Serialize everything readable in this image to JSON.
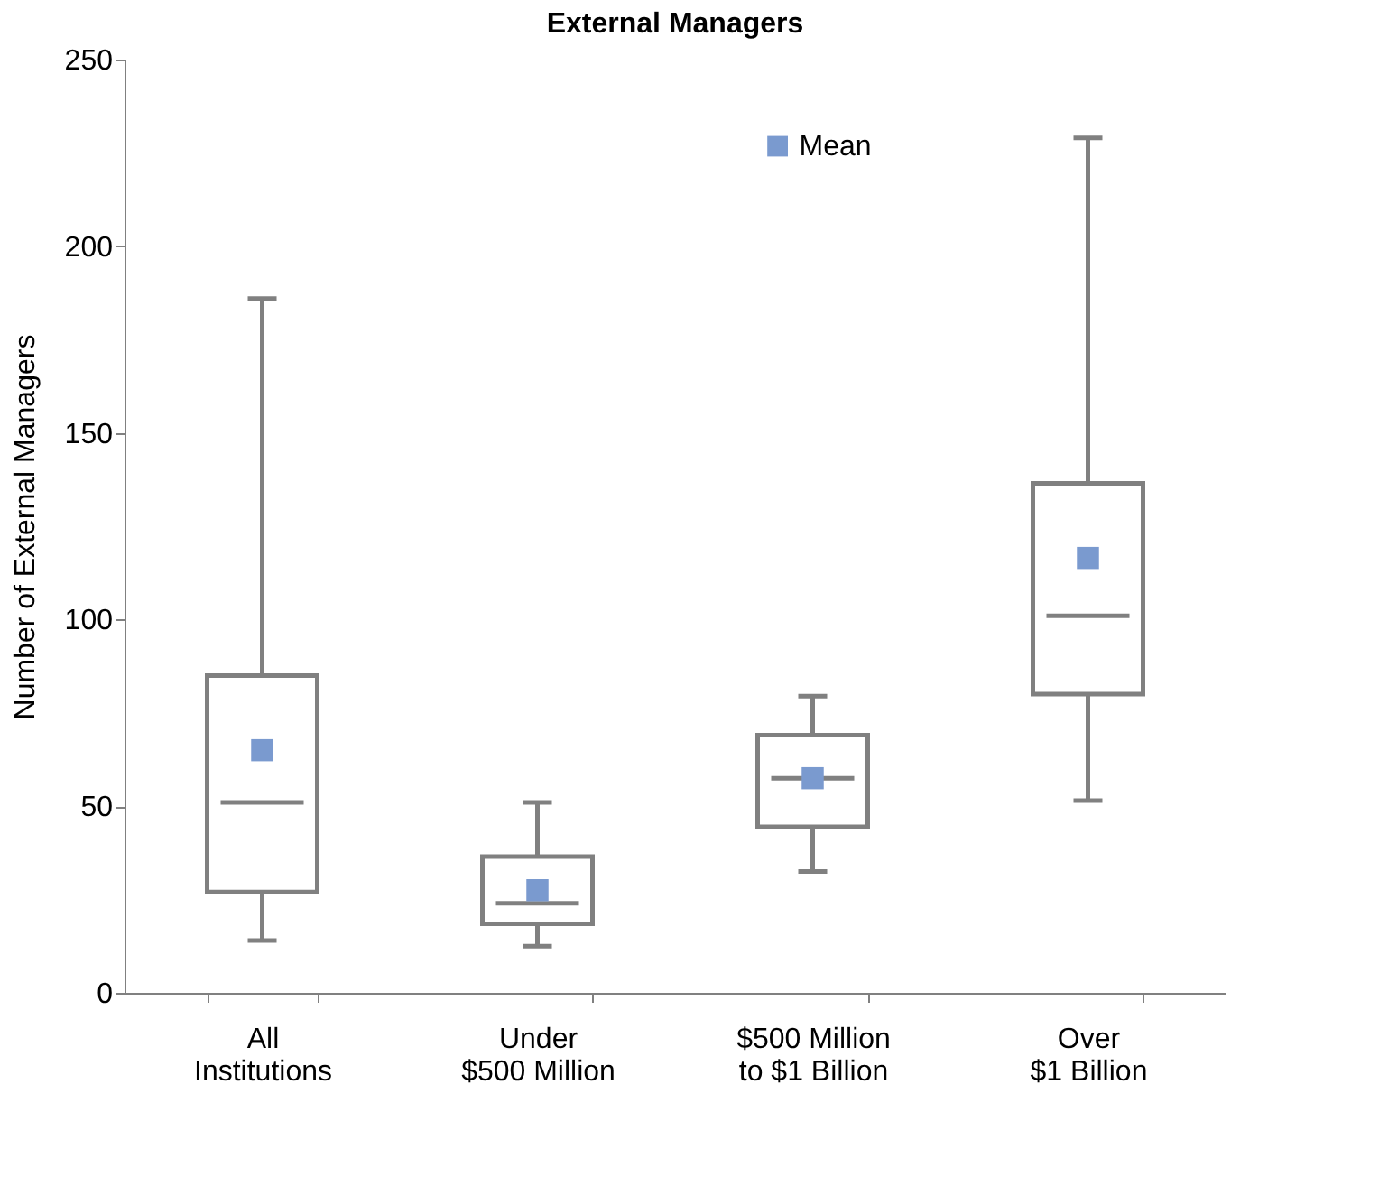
{
  "chart_data": {
    "type": "box",
    "title": "External Managers",
    "ylabel": "Number of External Managers",
    "categories": [
      "All\nInstitutions",
      "Under\n$500 Million",
      "$500 Million\nto $1 Billion",
      "Over\n$1 Billion"
    ],
    "boxes": [
      {
        "low": 14,
        "q1": 27,
        "median": 51,
        "q3": 85,
        "high": 186
      },
      {
        "low": 12.5,
        "q1": 18.5,
        "median": 24,
        "q3": 36.5,
        "high": 51
      },
      {
        "low": 32.5,
        "q1": 44.5,
        "median": 57.5,
        "q3": 69,
        "high": 79.5
      },
      {
        "low": 51.5,
        "q1": 80,
        "median": 101,
        "q3": 136.5,
        "high": 229
      }
    ],
    "color": "#808080",
    "series": [
      {
        "name": "Mean",
        "type": "scatter",
        "color": "#7a9acf",
        "marker": "square",
        "x": [
          "All\nInstitutions",
          "Under\n$500 Million",
          "$500 Million\nto $1 Billion",
          "Over\n$1 Billion"
        ],
        "values": [
          65,
          27.5,
          57.5,
          116.5
        ]
      }
    ],
    "ylim": [
      0,
      250
    ],
    "yticks": [
      0,
      50,
      100,
      150,
      200,
      250
    ],
    "grid": false,
    "legend": "top right"
  }
}
